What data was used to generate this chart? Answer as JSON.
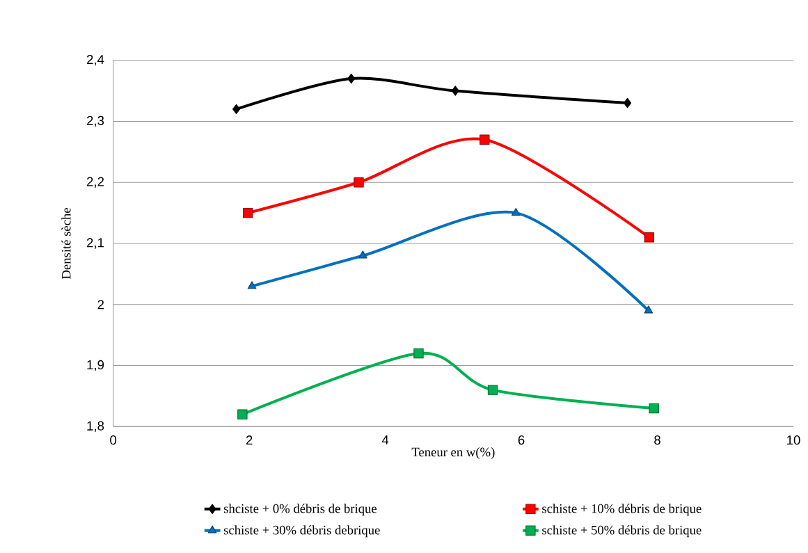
{
  "chart_data": {
    "type": "line",
    "xlabel": "Teneur en w(%)",
    "ylabel": "Densité sèche",
    "xlim": [
      0,
      10
    ],
    "xticks": [
      0,
      2,
      4,
      6,
      8,
      10
    ],
    "ylim": [
      1.8,
      2.4
    ],
    "yticks": [
      {
        "value": 1.8,
        "label": "1,8"
      },
      {
        "value": 1.9,
        "label": "1,9"
      },
      {
        "value": 2,
        "label": "2"
      },
      {
        "value": 2.1,
        "label": "2,1"
      },
      {
        "value": 2.2,
        "label": "2,2"
      },
      {
        "value": 2.3,
        "label": "2,3"
      },
      {
        "value": 2.4,
        "label": "2,4"
      }
    ],
    "grid": "y",
    "legend": "bottom",
    "series": [
      {
        "name": "shciste + 0% débris de brique",
        "color": "#000000",
        "marker": "diamond",
        "x": [
          1.81,
          3.5,
          5.03,
          7.56
        ],
        "values": [
          2.32,
          2.37,
          2.35,
          2.33
        ]
      },
      {
        "name": "schiste + 10% débris de brique",
        "color": "#ff0000",
        "marker": "square",
        "x": [
          1.98,
          3.61,
          5.46,
          7.88
        ],
        "values": [
          2.15,
          2.2,
          2.27,
          2.11
        ]
      },
      {
        "name": "schiste + 30% débris debrique",
        "color": "#0070c0",
        "marker": "triangle",
        "x": [
          2.04,
          3.67,
          5.92,
          7.87
        ],
        "values": [
          2.03,
          2.08,
          2.15,
          1.99
        ]
      },
      {
        "name": "schiste + 50% débris de brique",
        "color": "#00b050",
        "marker": "square",
        "x": [
          1.9,
          4.49,
          5.58,
          7.95
        ],
        "values": [
          1.82,
          1.92,
          1.86,
          1.83
        ]
      }
    ]
  }
}
